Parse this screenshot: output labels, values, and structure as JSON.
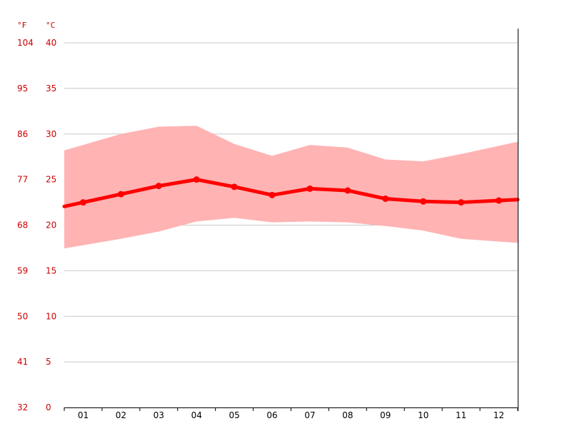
{
  "chart_data": {
    "type": "line",
    "title": "",
    "x": [
      "01",
      "02",
      "03",
      "04",
      "05",
      "06",
      "07",
      "08",
      "09",
      "10",
      "11",
      "12"
    ],
    "unit_labels": {
      "fahrenheit": "°F",
      "celsius": "°C"
    },
    "y_ticks_c": [
      "0",
      "5",
      "10",
      "15",
      "20",
      "25",
      "30",
      "35",
      "40"
    ],
    "y_ticks_f": [
      "32",
      "41",
      "50",
      "59",
      "68",
      "77",
      "86",
      "95",
      "104"
    ],
    "ylim": [
      0,
      40
    ],
    "series": [
      {
        "role": "mean",
        "values": [
          22.5,
          23.4,
          24.3,
          25.0,
          24.2,
          23.3,
          24.0,
          23.8,
          22.9,
          22.6,
          22.5,
          22.7
        ]
      },
      {
        "role": "max",
        "values": [
          28.8,
          30.0,
          30.8,
          30.9,
          28.9,
          27.6,
          28.8,
          28.5,
          27.2,
          27.0,
          27.8,
          28.7
        ]
      },
      {
        "role": "min",
        "values": [
          17.8,
          18.5,
          19.3,
          20.4,
          20.8,
          20.3,
          20.4,
          20.3,
          19.9,
          19.4,
          18.5,
          18.2
        ]
      }
    ],
    "grid": true,
    "colors": {
      "line": "#ff0000",
      "band": "#ffb3b3",
      "axis_text": "#cc0000",
      "grid": "#c8c8c8"
    }
  }
}
